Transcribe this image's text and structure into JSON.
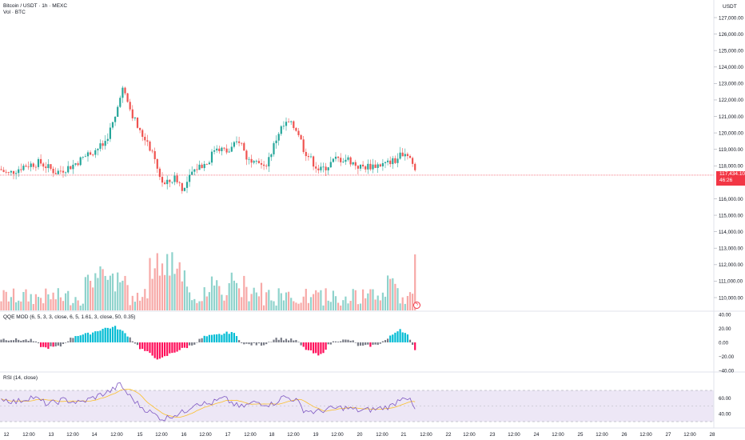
{
  "header": {
    "symbol_title": "Bitcoin / USDT · 1h · MEXC",
    "volume_title": "Vol · BTC"
  },
  "price_scale": {
    "currency": "USDT",
    "ticks": [
      "127,000.00",
      "126,000.00",
      "125,000.00",
      "124,000.00",
      "123,000.00",
      "122,000.00",
      "121,000.00",
      "120,000.00",
      "119,000.00",
      "118,000.00",
      "116,000.00",
      "115,000.00",
      "114,000.00",
      "113,000.00",
      "112,000.00",
      "111,000.00",
      "110,000.00"
    ],
    "tick_values": [
      127000,
      126000,
      125000,
      124000,
      123000,
      122000,
      121000,
      120000,
      119000,
      118000,
      116000,
      115000,
      114000,
      113000,
      112000,
      111000,
      110000
    ],
    "last_price": "117,434.10",
    "countdown": "46:26",
    "last_price_value": 117434.1
  },
  "qqe_panel": {
    "title": "QQE MOD (6, 5, 3, 3, close, 6, 5, 1.61, 3, close, 50, 0.35)",
    "ticks": [
      "40.00",
      "20.00",
      "0.00",
      "−20.00",
      "−40.00"
    ],
    "tick_values": [
      40,
      20,
      0,
      -20,
      -40
    ]
  },
  "rsi_panel": {
    "title": "RSI (14, close)",
    "ticks": [
      "60.00",
      "40.00"
    ],
    "tick_values": [
      60,
      40
    ]
  },
  "time_axis": {
    "labels": [
      "12",
      "12:00",
      "13",
      "12:00",
      "14",
      "12:00",
      "15",
      "12:00",
      "16",
      "12:00",
      "17",
      "12:00",
      "18",
      "12:00",
      "19",
      "12:00",
      "20",
      "12:00",
      "21",
      "12:00",
      "22",
      "23",
      "24",
      "25",
      "26",
      "27",
      "28",
      "12:00",
      "12:00",
      "12:00",
      "12:00",
      "12:00",
      "12:00"
    ]
  },
  "colors": {
    "up": "#26a69a",
    "down": "#ef5350",
    "vol_up": "#8fd3cc",
    "vol_down": "#f7a9a7",
    "qqe_up": "#00bcd4",
    "qqe_down": "#ff0e5a",
    "qqe_neutral": "#787b86",
    "rsi_line": "#7e57c2",
    "rsi_ma": "#fbc02d",
    "rsi_band": "#ede7f6",
    "price_line": "#f23645"
  },
  "icons": {
    "alert": "lightning-icon"
  }
}
